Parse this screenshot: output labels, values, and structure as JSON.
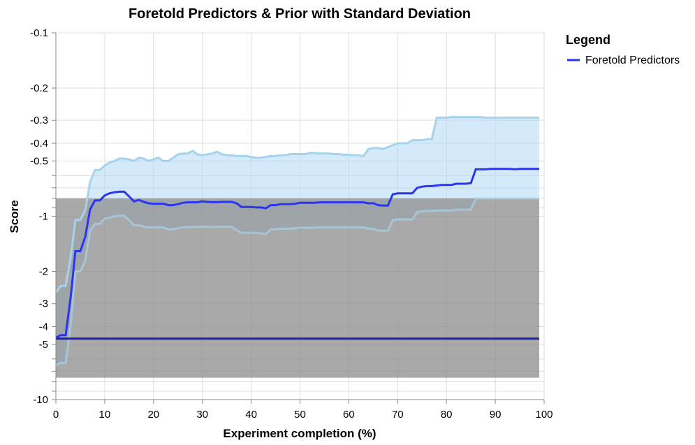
{
  "chart_data": {
    "type": "line",
    "title": "Foretold Predictors & Prior with Standard Deviation",
    "xlabel": "Experiment completion (%)",
    "ylabel": "Score",
    "xlim": [
      0,
      100
    ],
    "ylim": [
      -10,
      -0.1
    ],
    "y_scale": "symlog-negative",
    "x_ticks": [
      0,
      10,
      20,
      30,
      40,
      50,
      60,
      70,
      80,
      90,
      100
    ],
    "y_ticks_labeled": [
      {
        "value": -0.1,
        "label": "-0.1"
      },
      {
        "value": -0.2,
        "label": "-0.2"
      },
      {
        "value": -0.3,
        "label": "-0.3"
      },
      {
        "value": -0.4,
        "label": "-0.4"
      },
      {
        "value": -0.5,
        "label": "-0.5"
      },
      {
        "value": -1,
        "label": "-1"
      },
      {
        "value": -2,
        "label": "-2"
      },
      {
        "value": -3,
        "label": "-3"
      },
      {
        "value": -4,
        "label": "-4"
      },
      {
        "value": -5,
        "label": "-5"
      },
      {
        "value": -10,
        "label": "-10"
      }
    ],
    "y_ticks_minor": [
      -0.6,
      -0.7,
      -0.8,
      -0.9,
      -6,
      -7,
      -8,
      -9
    ],
    "grid": true,
    "legend": {
      "title": "Legend",
      "position": "right",
      "entries": [
        {
          "label": "Foretold Predictors",
          "color": "#2b35f0"
        }
      ]
    },
    "series": [
      {
        "name": "Foretold Predictors",
        "color": "#2b35f0",
        "band_color": "#aad6f5",
        "x": [
          0,
          1,
          2,
          3,
          4,
          5,
          6,
          7,
          8,
          9,
          10,
          11,
          12,
          13,
          14,
          15,
          16,
          17,
          18,
          19,
          20,
          21,
          22,
          23,
          24,
          25,
          26,
          27,
          28,
          29,
          30,
          31,
          32,
          33,
          34,
          35,
          36,
          37,
          38,
          39,
          40,
          41,
          42,
          43,
          44,
          45,
          46,
          47,
          48,
          49,
          50,
          51,
          52,
          53,
          54,
          55,
          56,
          57,
          58,
          59,
          60,
          61,
          62,
          63,
          64,
          65,
          66,
          67,
          68,
          69,
          70,
          71,
          72,
          73,
          74,
          75,
          76,
          77,
          78,
          79,
          80,
          81,
          82,
          83,
          84,
          85,
          86,
          87,
          88,
          89,
          90,
          91,
          92,
          93,
          94,
          95,
          96,
          97,
          98,
          99
        ],
        "mean": [
          -4.6,
          -4.45,
          -4.45,
          -2.8,
          -1.55,
          -1.55,
          -1.3,
          -0.92,
          -0.82,
          -0.82,
          -0.77,
          -0.75,
          -0.74,
          -0.735,
          -0.735,
          -0.78,
          -0.83,
          -0.815,
          -0.835,
          -0.85,
          -0.855,
          -0.855,
          -0.855,
          -0.87,
          -0.87,
          -0.86,
          -0.845,
          -0.84,
          -0.84,
          -0.84,
          -0.83,
          -0.835,
          -0.838,
          -0.838,
          -0.835,
          -0.835,
          -0.835,
          -0.85,
          -0.89,
          -0.89,
          -0.89,
          -0.895,
          -0.895,
          -0.905,
          -0.87,
          -0.87,
          -0.86,
          -0.86,
          -0.86,
          -0.855,
          -0.845,
          -0.845,
          -0.845,
          -0.845,
          -0.84,
          -0.84,
          -0.84,
          -0.84,
          -0.84,
          -0.84,
          -0.84,
          -0.84,
          -0.84,
          -0.84,
          -0.85,
          -0.85,
          -0.87,
          -0.875,
          -0.875,
          -0.76,
          -0.75,
          -0.75,
          -0.75,
          -0.75,
          -0.7,
          -0.69,
          -0.685,
          -0.685,
          -0.68,
          -0.675,
          -0.675,
          -0.675,
          -0.665,
          -0.665,
          -0.665,
          -0.66,
          -0.555,
          -0.555,
          -0.555,
          -0.552,
          -0.552,
          -0.552,
          -0.552,
          -0.552,
          -0.555,
          -0.552,
          -0.552,
          -0.552,
          -0.552,
          -0.552
        ],
        "upper": [
          -2.6,
          -2.4,
          -2.4,
          -1.7,
          -1.05,
          -1.05,
          -0.93,
          -0.65,
          -0.56,
          -0.56,
          -0.53,
          -0.51,
          -0.5,
          -0.485,
          -0.485,
          -0.49,
          -0.5,
          -0.48,
          -0.485,
          -0.5,
          -0.49,
          -0.48,
          -0.5,
          -0.5,
          -0.48,
          -0.46,
          -0.455,
          -0.455,
          -0.44,
          -0.46,
          -0.465,
          -0.46,
          -0.455,
          -0.445,
          -0.46,
          -0.465,
          -0.465,
          -0.47,
          -0.47,
          -0.47,
          -0.475,
          -0.48,
          -0.48,
          -0.475,
          -0.47,
          -0.47,
          -0.465,
          -0.465,
          -0.458,
          -0.458,
          -0.458,
          -0.458,
          -0.452,
          -0.452,
          -0.455,
          -0.455,
          -0.455,
          -0.458,
          -0.458,
          -0.462,
          -0.462,
          -0.465,
          -0.465,
          -0.47,
          -0.43,
          -0.425,
          -0.425,
          -0.43,
          -0.42,
          -0.41,
          -0.4,
          -0.4,
          -0.4,
          -0.385,
          -0.385,
          -0.385,
          -0.38,
          -0.38,
          -0.29,
          -0.29,
          -0.29,
          -0.288,
          -0.288,
          -0.288,
          -0.288,
          -0.288,
          -0.288,
          -0.288,
          -0.29,
          -0.29,
          -0.29,
          -0.29,
          -0.29,
          -0.29,
          -0.29,
          -0.29,
          -0.29,
          -0.29,
          -0.29,
          -0.29
        ],
        "lower": [
          -6.5,
          -6.3,
          -6.3,
          -4.0,
          -2.0,
          -2.0,
          -1.75,
          -1.2,
          -1.1,
          -1.1,
          -1.03,
          -1.02,
          -1.0,
          -0.995,
          -0.995,
          -1.05,
          -1.12,
          -1.12,
          -1.14,
          -1.15,
          -1.15,
          -1.15,
          -1.15,
          -1.18,
          -1.18,
          -1.16,
          -1.15,
          -1.145,
          -1.145,
          -1.14,
          -1.14,
          -1.145,
          -1.145,
          -1.145,
          -1.14,
          -1.14,
          -1.14,
          -1.19,
          -1.23,
          -1.23,
          -1.23,
          -1.235,
          -1.24,
          -1.25,
          -1.18,
          -1.18,
          -1.17,
          -1.17,
          -1.17,
          -1.165,
          -1.155,
          -1.155,
          -1.155,
          -1.155,
          -1.15,
          -1.15,
          -1.15,
          -1.15,
          -1.15,
          -1.15,
          -1.15,
          -1.15,
          -1.15,
          -1.15,
          -1.17,
          -1.17,
          -1.2,
          -1.2,
          -1.2,
          -1.05,
          -1.04,
          -1.04,
          -1.04,
          -1.04,
          -0.95,
          -0.94,
          -0.935,
          -0.935,
          -0.93,
          -0.93,
          -0.93,
          -0.93,
          -0.92,
          -0.92,
          -0.92,
          -0.92,
          -0.8,
          -0.8,
          -0.8,
          -0.8,
          -0.8,
          -0.8,
          -0.8,
          -0.8,
          -0.8,
          -0.8,
          -0.8,
          -0.8,
          -0.8,
          -0.8
        ]
      },
      {
        "name": "Prior",
        "color": "#1f1fa8",
        "band_color": "#8c8c8c",
        "x_range": [
          0,
          99
        ],
        "mean": -4.65,
        "upper": -0.8,
        "lower": -7.6
      }
    ]
  }
}
